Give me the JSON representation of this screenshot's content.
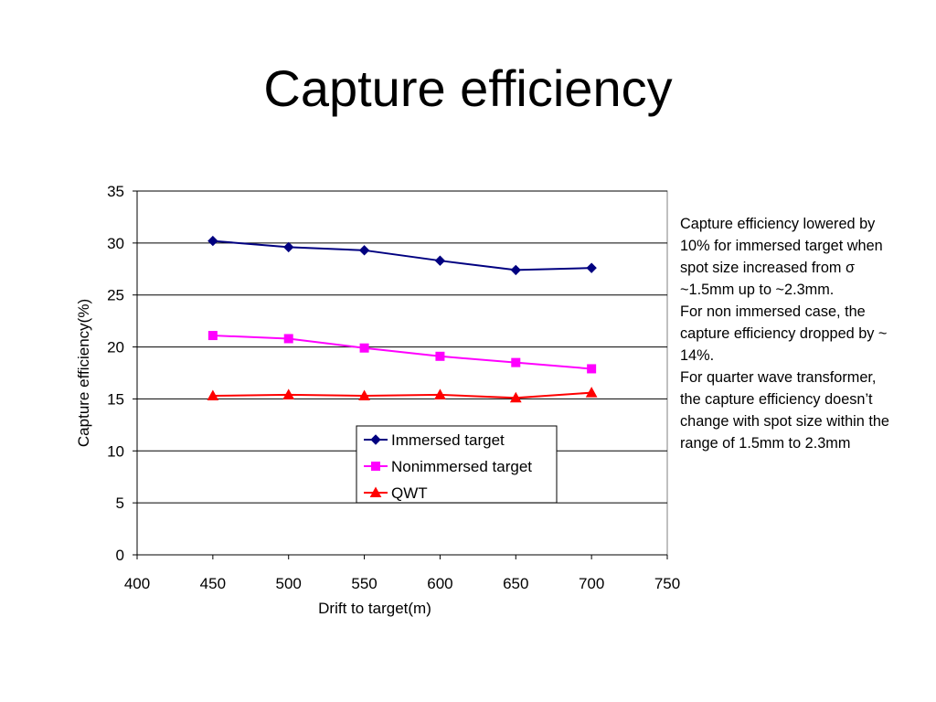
{
  "slide": {
    "title": "Capture efficiency"
  },
  "notes": [
    "Capture efficiency lowered by 10% for immersed target when spot size increased from σ ~1.5mm up to ~2.3mm.",
    "For non immersed case, the capture efficiency dropped by ~ 14%.",
    "For quarter wave transformer, the capture efficiency doesn’t change with spot size within the range of 1.5mm to 2.3mm"
  ],
  "chart_data": {
    "type": "line",
    "title": "",
    "xlabel": "Drift to target(m)",
    "ylabel": "Capture efficiency(%)",
    "xlim": [
      400,
      750
    ],
    "ylim": [
      0,
      35
    ],
    "xticks": [
      400,
      450,
      500,
      550,
      600,
      650,
      700,
      750
    ],
    "yticks": [
      0,
      5,
      10,
      15,
      20,
      25,
      30,
      35
    ],
    "grid": "horizontal",
    "legend_position": "inside-bottom-center",
    "x": [
      450,
      500,
      550,
      600,
      650,
      700
    ],
    "series": [
      {
        "name": "Immersed target",
        "values": [
          30.2,
          29.6,
          29.3,
          28.3,
          27.4,
          27.6
        ],
        "color": "#000080",
        "marker": "diamond"
      },
      {
        "name": "Nonimmersed target",
        "values": [
          21.1,
          20.8,
          19.9,
          19.1,
          18.5,
          17.9
        ],
        "color": "#ff00ff",
        "marker": "square"
      },
      {
        "name": "QWT",
        "values": [
          15.3,
          15.4,
          15.3,
          15.4,
          15.1,
          15.6
        ],
        "color": "#ff0000",
        "marker": "triangle"
      }
    ]
  }
}
